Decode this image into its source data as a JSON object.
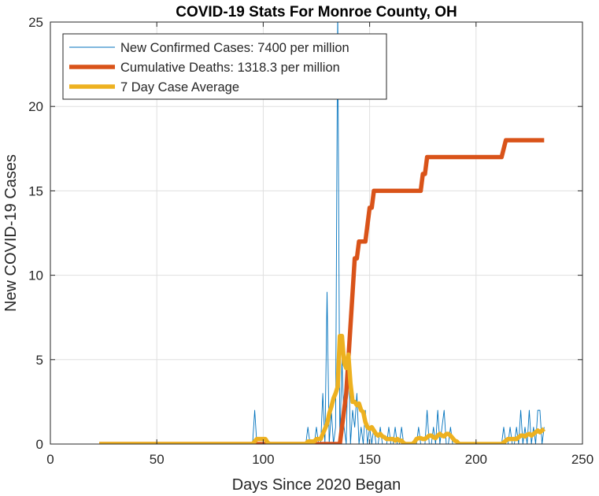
{
  "chart_data": {
    "type": "line",
    "title": "COVID-19 Stats For Monroe County, OH",
    "xlabel": "Days Since 2020 Began",
    "ylabel": "New COVID-19 Cases",
    "xlim": [
      0,
      250
    ],
    "ylim": [
      0,
      25
    ],
    "xticks": [
      0,
      50,
      100,
      150,
      200,
      250
    ],
    "yticks": [
      0,
      5,
      10,
      15,
      20,
      25
    ],
    "grid": true,
    "legend_position": "top-left",
    "series": [
      {
        "name": "New Confirmed Cases: 7400 per million",
        "color": "#0072BD",
        "style": "thin",
        "x": [
          23,
          95,
          96,
          97,
          98,
          120,
          121,
          122,
          123,
          124,
          125,
          126,
          127,
          128,
          129,
          130,
          131,
          132,
          133,
          134,
          135,
          136,
          137,
          138,
          139,
          140,
          141,
          142,
          143,
          144,
          145,
          146,
          147,
          148,
          149,
          150,
          151,
          152,
          153,
          154,
          155,
          156,
          157,
          158,
          159,
          160,
          161,
          162,
          163,
          164,
          165,
          166,
          167,
          168,
          169,
          170,
          171,
          172,
          173,
          174,
          175,
          176,
          177,
          178,
          179,
          180,
          181,
          182,
          183,
          184,
          185,
          186,
          187,
          188,
          189,
          190,
          191,
          192,
          193,
          194,
          195,
          196,
          210,
          211,
          212,
          213,
          214,
          215,
          216,
          217,
          218,
          219,
          220,
          221,
          222,
          223,
          224,
          225,
          226,
          227,
          228,
          229,
          230,
          231,
          232
        ],
        "y": [
          0,
          0,
          2,
          0,
          0,
          0,
          1,
          0,
          0,
          0,
          1,
          0,
          0,
          3,
          0,
          9,
          0,
          2,
          0,
          1,
          26,
          0,
          5,
          1,
          0,
          6,
          0,
          2,
          1,
          3,
          0,
          1,
          0,
          2,
          0,
          1,
          0,
          1,
          0,
          0,
          1,
          0,
          0,
          0,
          1,
          0,
          0,
          1,
          0,
          0,
          1,
          0,
          0,
          0,
          0,
          0,
          0,
          0,
          1,
          0,
          0,
          0,
          2,
          0,
          0,
          1,
          0,
          2,
          0,
          1,
          2,
          0,
          0,
          1,
          0,
          0,
          0,
          0,
          0,
          0,
          0,
          0,
          0,
          0,
          0,
          1,
          0,
          0,
          1,
          0,
          0,
          1,
          0,
          2,
          0,
          1,
          0,
          2,
          0,
          1,
          0,
          2,
          2,
          0,
          1
        ]
      },
      {
        "name": "Cumulative Deaths: 1318.3 per million",
        "color": "#D95319",
        "style": "thick",
        "x": [
          23,
          95,
          97,
          101,
          102,
          124,
          126,
          127,
          135,
          136,
          137,
          138,
          139,
          140,
          141,
          142,
          143,
          144,
          145,
          146,
          147,
          148,
          149,
          150,
          151,
          152,
          153,
          154,
          155,
          156,
          157,
          173,
          174,
          175,
          176,
          177,
          178,
          179,
          211,
          212,
          213,
          214,
          232
        ],
        "y": [
          0,
          0,
          0,
          0,
          0,
          0,
          0,
          0,
          0,
          0,
          1,
          2,
          3,
          5,
          7,
          9,
          11,
          11,
          12,
          12,
          12,
          12,
          13,
          14,
          14,
          15,
          15,
          15,
          15,
          15,
          15,
          15,
          15,
          16,
          16,
          17,
          17,
          17,
          17,
          17,
          17.5,
          18,
          18
        ]
      },
      {
        "name": "7 Day Case Average",
        "color": "#EDB120",
        "style": "thick",
        "x": [
          23,
          95,
          96,
          97,
          98,
          99,
          100,
          101,
          102,
          103,
          120,
          121,
          122,
          123,
          124,
          125,
          126,
          127,
          128,
          129,
          130,
          131,
          132,
          133,
          134,
          135,
          136,
          137,
          138,
          139,
          140,
          141,
          142,
          143,
          144,
          145,
          146,
          147,
          148,
          149,
          150,
          151,
          152,
          153,
          154,
          155,
          156,
          157,
          158,
          159,
          160,
          161,
          162,
          163,
          164,
          165,
          166,
          167,
          168,
          169,
          170,
          171,
          172,
          173,
          174,
          175,
          176,
          177,
          178,
          179,
          180,
          181,
          182,
          183,
          184,
          185,
          186,
          187,
          188,
          189,
          190,
          191,
          192,
          193,
          194,
          195,
          196,
          210,
          211,
          212,
          213,
          214,
          215,
          216,
          217,
          218,
          219,
          220,
          221,
          222,
          223,
          224,
          225,
          226,
          227,
          228,
          229,
          230,
          231,
          232
        ],
        "y": [
          0,
          0,
          0.15,
          0.3,
          0.3,
          0.3,
          0.3,
          0.3,
          0.1,
          0,
          0,
          0.15,
          0.15,
          0.15,
          0.15,
          0.3,
          0.3,
          0.3,
          0.6,
          0.9,
          1.2,
          1.8,
          2.2,
          2.7,
          3,
          3.4,
          6.4,
          6.4,
          4.8,
          4.5,
          5.3,
          3.6,
          2.5,
          2.5,
          2.3,
          2.4,
          2,
          1.9,
          1.3,
          1,
          0.9,
          1,
          0.8,
          0.6,
          0.5,
          0.6,
          0.45,
          0.4,
          0.3,
          0.3,
          0.3,
          0.3,
          0.2,
          0.3,
          0.2,
          0.2,
          0.05,
          0,
          0,
          0,
          0,
          0.1,
          0.3,
          0.35,
          0.35,
          0.3,
          0.3,
          0.4,
          0.5,
          0.5,
          0.4,
          0.35,
          0.5,
          0.6,
          0.5,
          0.45,
          0.6,
          0.6,
          0.5,
          0.35,
          0.2,
          0.15,
          0,
          0,
          0,
          0,
          0,
          0,
          0,
          0,
          0.1,
          0.2,
          0.3,
          0.3,
          0.3,
          0.3,
          0.3,
          0.4,
          0.5,
          0.5,
          0.45,
          0.55,
          0.6,
          0.5,
          0.6,
          0.7,
          0.8,
          0.7,
          0.8,
          0.9
        ]
      }
    ]
  }
}
